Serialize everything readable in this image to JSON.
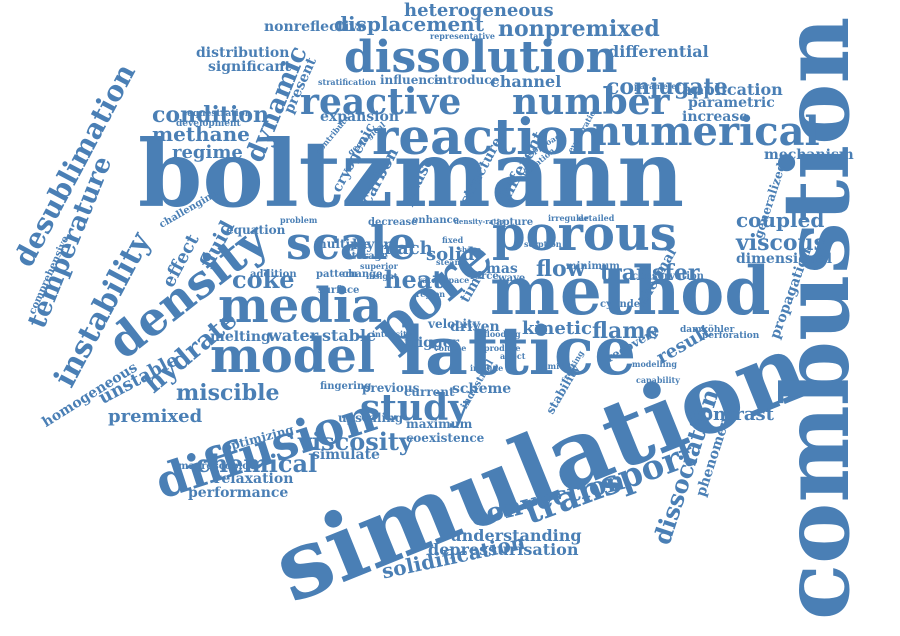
{
  "colors": {
    "word": "#4a7fb5",
    "background": "#ffffff"
  },
  "words": [
    "boltzmann",
    "simulation",
    "combustion",
    "lattice",
    "method",
    "porous",
    "model",
    "media",
    "scale",
    "reaction",
    "numerical",
    "density",
    "dissolution",
    "reactive",
    "number",
    "pore",
    "diffusion",
    "study",
    "instability",
    "temperature",
    "desublimation",
    "transport",
    "convection",
    "viscosity",
    "chemical",
    "hydrate",
    "heat",
    "flow",
    "transfer",
    "flame",
    "kinetic",
    "result",
    "contrast",
    "dissociation",
    "solidification",
    "understanding",
    "depressurisation",
    "miscible",
    "premixed",
    "homogeneous",
    "unstable",
    "coke",
    "viscous",
    "coupled",
    "condition",
    "methane",
    "regime",
    "dynamic",
    "conjugate",
    "displacement",
    "nonpremixed",
    "heterogeneous",
    "nonreflective",
    "distribution",
    "significant",
    "differential",
    "application",
    "parametric",
    "increase",
    "mechanism",
    "generalized",
    "propagation",
    "dimensional",
    "phenomenon",
    "fluid",
    "effect",
    "performance",
    "relaxation",
    "simulate",
    "upscaling",
    "maximum",
    "coexistence",
    "previous",
    "current",
    "scheme",
    "melting",
    "water",
    "stable",
    "driven",
    "solid",
    "mach",
    "phase",
    "carbon",
    "cryogenic",
    "structure",
    "different",
    "channel",
    "introduce",
    "influence",
    "present",
    "expansion",
    "layer",
    "multiple",
    "equation",
    "comprehensive",
    "challenging",
    "development",
    "sequestration",
    "stratification",
    "representative",
    "parameter",
    "conservation",
    "perforation",
    "thermal",
    "recovery",
    "modelling",
    "capability",
    "fingering",
    "optimizing",
    "macroscopic",
    "stability",
    "velocity",
    "trigger",
    "intensity",
    "industrial",
    "cylinder",
    "damköhler",
    "minimum",
    "mas",
    "force",
    "wave",
    "capture",
    "enhance",
    "decrease",
    "addition",
    "pattern",
    "change",
    "surface",
    "storage",
    "superior",
    "insight",
    "geological",
    "contribute",
    "approach",
    "evaporation",
    "detailed",
    "irregular",
    "problem",
    "steam",
    "flooding",
    "frosting",
    "humidity",
    "fixed",
    "density-ratio",
    "shape",
    "time",
    "rate",
    "space",
    "region",
    "volume",
    "sorption",
    "variation",
    "affect",
    "include",
    "produce"
  ]
}
